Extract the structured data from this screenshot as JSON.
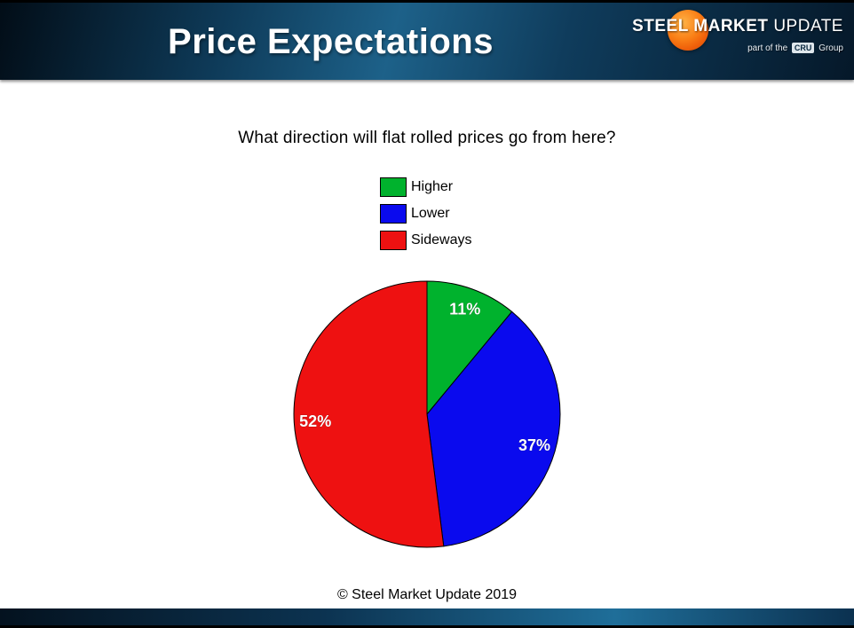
{
  "slide": {
    "title": "Price Expectations",
    "footer": "© Steel Market Update 2019"
  },
  "logo": {
    "steel": "STEEL",
    "market": "MARKET",
    "update": "UPDATE",
    "tagline_pre": "part of the",
    "tagline_cru": "CRU",
    "tagline_post": "Group",
    "accent_orange": "#f26a12"
  },
  "chart_data": {
    "type": "pie",
    "title": "What direction will flat rolled prices go from here?",
    "labels": [
      "Higher",
      "Lower",
      "Sideways"
    ],
    "values": [
      11,
      37,
      52
    ],
    "value_labels": [
      "11%",
      "37%",
      "52%"
    ],
    "colors": [
      "#00b22d",
      "#0a0aee",
      "#ee1111"
    ],
    "label_color": "#ffffff",
    "start_angle_deg": 0,
    "direction": "clockwise",
    "legend_position": "above-chart",
    "slice_outline_color": "#000000"
  },
  "theme": {
    "header_gradient": [
      "#020d17",
      "#1d6189",
      "#051829"
    ],
    "background": "#ffffff"
  }
}
